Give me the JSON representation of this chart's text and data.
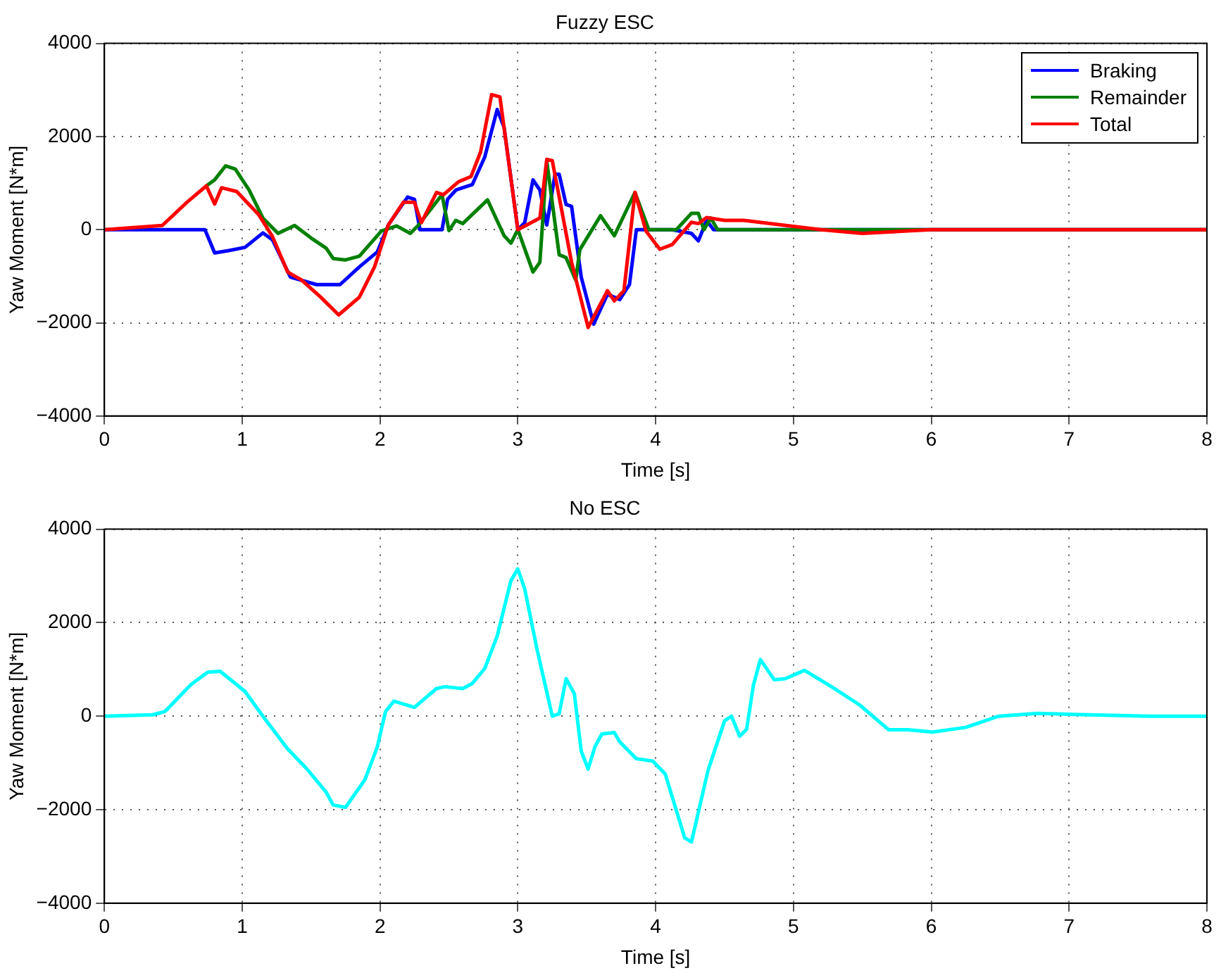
{
  "chart_data": [
    {
      "type": "line",
      "title": "Fuzzy ESC",
      "xlabel": "Time [s]",
      "ylabel": "Yaw Moment [N*m]",
      "xlim": [
        0,
        8
      ],
      "xticks": [
        0,
        1,
        2,
        3,
        4,
        5,
        6,
        7,
        8
      ],
      "ylim": [
        -4000,
        4000
      ],
      "yticks": [
        -4000,
        -2000,
        0,
        2000,
        4000
      ],
      "grid": true,
      "legend": "top right",
      "line_style": "solid",
      "marker": "none",
      "series": [
        {
          "name": "Braking",
          "color": "#0000ff",
          "x": [
            0,
            0.73,
            0.8,
            0.9,
            1.02,
            1.15,
            1.22,
            1.35,
            1.54,
            1.71,
            1.85,
            1.98,
            2.06,
            2.2,
            2.25,
            2.29,
            2.45,
            2.49,
            2.55,
            2.67,
            2.76,
            2.85,
            2.9,
            3.0,
            3.05,
            3.11,
            3.16,
            3.21,
            3.27,
            3.3,
            3.35,
            3.39,
            3.46,
            3.55,
            3.65,
            3.74,
            3.81,
            3.86,
            4.12,
            4.26,
            4.31,
            4.37,
            4.42,
            8
          ],
          "values": [
            0,
            0,
            -500,
            -450,
            -380,
            -70,
            -220,
            -1020,
            -1180,
            -1180,
            -800,
            -480,
            100,
            700,
            650,
            0,
            0,
            650,
            850,
            970,
            1560,
            2580,
            2200,
            0,
            150,
            1070,
            850,
            100,
            1190,
            1190,
            540,
            500,
            -1020,
            -2030,
            -1390,
            -1500,
            -1180,
            0,
            0,
            -80,
            -240,
            200,
            0,
            0
          ]
        },
        {
          "name": "Remainder",
          "color": "#008000",
          "x": [
            0.74,
            0.8,
            0.88,
            0.95,
            1.05,
            1.15,
            1.26,
            1.38,
            1.5,
            1.61,
            1.66,
            1.75,
            1.85,
            2.01,
            2.12,
            2.22,
            2.28,
            2.45,
            2.5,
            2.55,
            2.6,
            2.78,
            2.9,
            2.95,
            3.0,
            3.11,
            3.16,
            3.21,
            3.3,
            3.35,
            3.42,
            3.45,
            3.6,
            3.7,
            3.85,
            3.95,
            4.15,
            4.26,
            4.31,
            4.35,
            4.4,
            4.45,
            8
          ],
          "values": [
            940,
            1070,
            1370,
            1300,
            850,
            250,
            -80,
            90,
            -180,
            -400,
            -620,
            -650,
            -570,
            -30,
            80,
            -80,
            100,
            750,
            -20,
            200,
            130,
            640,
            -130,
            -290,
            0,
            -910,
            -700,
            1470,
            -540,
            -600,
            -1080,
            -430,
            300,
            -130,
            800,
            0,
            0,
            350,
            350,
            0,
            250,
            0,
            0
          ]
        },
        {
          "name": "Total",
          "color": "#ff0000",
          "x": [
            0,
            0.42,
            0.6,
            0.74,
            0.8,
            0.85,
            0.96,
            1.12,
            1.22,
            1.33,
            1.43,
            1.57,
            1.7,
            1.85,
            1.96,
            2.06,
            2.17,
            2.25,
            2.3,
            2.41,
            2.46,
            2.57,
            2.66,
            2.73,
            2.81,
            2.87,
            3.0,
            3.16,
            3.21,
            3.25,
            3.39,
            3.51,
            3.65,
            3.7,
            3.77,
            3.85,
            3.93,
            4.03,
            4.12,
            4.26,
            4.31,
            4.37,
            4.5,
            4.64,
            5.2,
            5.5,
            6,
            8
          ],
          "values": [
            0,
            90,
            590,
            940,
            550,
            900,
            820,
            320,
            -150,
            -910,
            -1080,
            -1450,
            -1830,
            -1450,
            -800,
            100,
            590,
            590,
            150,
            800,
            750,
            1030,
            1140,
            1670,
            2900,
            2850,
            0,
            250,
            1510,
            1480,
            -700,
            -2100,
            -1310,
            -1530,
            -1310,
            800,
            -30,
            -420,
            -320,
            160,
            130,
            260,
            200,
            200,
            0,
            -80,
            0,
            0
          ]
        }
      ]
    },
    {
      "type": "line",
      "title": "No ESC",
      "xlabel": "Time [s]",
      "ylabel": "Yaw Moment [N*m]",
      "xlim": [
        0,
        8
      ],
      "xticks": [
        0,
        1,
        2,
        3,
        4,
        5,
        6,
        7,
        8
      ],
      "ylim": [
        -4000,
        4000
      ],
      "yticks": [
        -4000,
        -2000,
        0,
        2000,
        4000
      ],
      "grid": true,
      "line_style": "solid",
      "marker": "none",
      "series": [
        {
          "color": "#00ffff",
          "x": [
            0,
            0.35,
            0.44,
            0.63,
            0.75,
            0.84,
            1.02,
            1.15,
            1.33,
            1.47,
            1.61,
            1.66,
            1.75,
            1.89,
            1.98,
            2.04,
            2.1,
            2.25,
            2.41,
            2.47,
            2.6,
            2.67,
            2.76,
            2.85,
            2.95,
            3.0,
            3.05,
            3.14,
            3.25,
            3.3,
            3.35,
            3.41,
            3.46,
            3.51,
            3.56,
            3.61,
            3.7,
            3.74,
            3.86,
            3.98,
            4.07,
            4.21,
            4.26,
            4.38,
            4.5,
            4.55,
            4.61,
            4.66,
            4.71,
            4.76,
            4.86,
            4.94,
            5.08,
            5.27,
            5.48,
            5.69,
            5.83,
            6.01,
            6.25,
            6.49,
            6.77,
            7.0,
            7.58,
            8
          ],
          "values": [
            0,
            30,
            100,
            680,
            940,
            960,
            530,
            0,
            -700,
            -1130,
            -1630,
            -1900,
            -1950,
            -1360,
            -660,
            100,
            320,
            190,
            590,
            630,
            590,
            700,
            1020,
            1710,
            2900,
            3150,
            2720,
            1420,
            0,
            50,
            800,
            480,
            -750,
            -1130,
            -650,
            -380,
            -350,
            -550,
            -910,
            -960,
            -1240,
            -2600,
            -2690,
            -1160,
            -100,
            0,
            -430,
            -280,
            670,
            1210,
            780,
            800,
            980,
            640,
            240,
            -290,
            -290,
            -340,
            -240,
            0,
            60,
            40,
            0,
            0
          ]
        }
      ]
    }
  ]
}
